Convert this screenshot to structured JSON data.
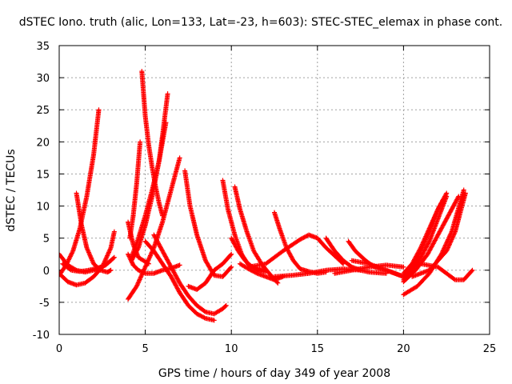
{
  "chart_data": {
    "type": "scatter",
    "title": "dSTEC Iono. truth (alic, Lon=133, Lat=-23, h=603): STEC-STEC_elemax in phase cont.",
    "xlabel": "GPS time / hours of day 349 of year 2008",
    "ylabel": "dSTEC  / TECUs",
    "xlim": [
      0,
      25
    ],
    "ylim": [
      -10,
      35
    ],
    "x_ticks": [
      0,
      5,
      10,
      15,
      20,
      25
    ],
    "y_ticks": [
      -10,
      -5,
      0,
      5,
      10,
      15,
      20,
      25,
      30,
      35
    ],
    "grid": true,
    "legend": "none",
    "marker": "+",
    "color": "#ff0000",
    "series": [
      {
        "x": [
          0.0,
          0.4,
          0.8,
          1.2,
          1.6,
          2.0,
          2.3
        ],
        "y": [
          -0.8,
          0.8,
          3.0,
          6.5,
          11.5,
          18.0,
          25.0
        ]
      },
      {
        "x": [
          0.0,
          0.5,
          1.0,
          1.5,
          2.0,
          2.5,
          3.0
        ],
        "y": [
          2.5,
          0.8,
          0.0,
          -0.3,
          0.0,
          0.5,
          1.5
        ]
      },
      {
        "x": [
          0.0,
          0.5,
          1.0,
          1.5,
          2.0,
          2.5,
          3.0,
          3.2
        ],
        "y": [
          -0.5,
          -1.8,
          -2.3,
          -2.0,
          -1.0,
          0.5,
          3.5,
          6.0
        ]
      },
      {
        "x": [
          0.2,
          0.7,
          1.2,
          1.7,
          2.2,
          2.7,
          3.2
        ],
        "y": [
          1.0,
          0.0,
          -0.2,
          0.0,
          0.3,
          0.8,
          2.0
        ]
      },
      {
        "x": [
          1.0,
          1.3,
          1.6,
          2.0,
          2.4,
          2.8,
          3.0
        ],
        "y": [
          12.0,
          7.0,
          3.5,
          1.0,
          0.0,
          -0.3,
          0.0
        ]
      },
      {
        "x": [
          4.0,
          4.3,
          4.6,
          5.0,
          5.5,
          6.0,
          6.5,
          7.0
        ],
        "y": [
          2.5,
          0.8,
          0.0,
          -0.5,
          -0.5,
          0.0,
          0.3,
          0.8
        ]
      },
      {
        "x": [
          4.0,
          4.3,
          4.6,
          4.9,
          5.2
        ],
        "y": [
          7.5,
          4.0,
          2.0,
          1.5,
          1.0
        ]
      },
      {
        "x": [
          4.0,
          4.5,
          5.0,
          5.5,
          6.0,
          6.5,
          7.0
        ],
        "y": [
          -4.5,
          -2.5,
          0.5,
          3.5,
          7.5,
          12.5,
          17.5
        ]
      },
      {
        "x": [
          4.1,
          4.3,
          4.5,
          4.7
        ],
        "y": [
          5.0,
          8.5,
          13.5,
          20.0
        ]
      },
      {
        "x": [
          4.2,
          4.6,
          5.0,
          5.4,
          5.8,
          6.2
        ],
        "y": [
          1.5,
          3.5,
          7.0,
          11.5,
          17.0,
          23.0
        ]
      },
      {
        "x": [
          4.2,
          4.6,
          5.0,
          5.4,
          5.8,
          6.0,
          6.3
        ],
        "y": [
          2.0,
          5.0,
          8.5,
          12.5,
          17.0,
          21.0,
          27.5
        ]
      },
      {
        "x": [
          4.8,
          5.0,
          5.2,
          5.4,
          5.6,
          5.8,
          6.0
        ],
        "y": [
          31.0,
          24.0,
          19.5,
          16.0,
          13.0,
          10.5,
          8.5
        ]
      },
      {
        "x": [
          5.5,
          6.0,
          6.5,
          7.0,
          7.5,
          8.0,
          8.5,
          9.0,
          9.5,
          9.7
        ],
        "y": [
          5.5,
          3.0,
          0.5,
          -2.0,
          -4.0,
          -5.5,
          -6.5,
          -6.8,
          -6.0,
          -5.5
        ]
      },
      {
        "x": [
          5.0,
          5.5,
          6.0,
          6.5,
          7.0,
          7.5,
          8.0,
          8.5,
          9.0
        ],
        "y": [
          4.5,
          3.0,
          1.0,
          -1.0,
          -3.5,
          -5.5,
          -6.8,
          -7.5,
          -7.8
        ]
      },
      {
        "x": [
          7.3,
          7.6,
          8.0,
          8.5,
          9.0,
          9.5,
          10.0
        ],
        "y": [
          15.5,
          10.0,
          5.5,
          1.5,
          -0.8,
          -1.0,
          0.5
        ]
      },
      {
        "x": [
          7.5,
          8.0,
          8.5,
          9.0,
          9.5,
          10.0
        ],
        "y": [
          -2.5,
          -3.0,
          -2.0,
          0.0,
          1.0,
          2.5
        ]
      },
      {
        "x": [
          9.5,
          9.8,
          10.2,
          10.6,
          11.0,
          11.5,
          12.0
        ],
        "y": [
          14.0,
          9.5,
          5.5,
          2.5,
          0.8,
          0.2,
          0.0
        ]
      },
      {
        "x": [
          10.2,
          10.5,
          10.9,
          11.3,
          11.8,
          12.2,
          12.7
        ],
        "y": [
          13.0,
          9.5,
          6.0,
          3.0,
          0.8,
          -0.5,
          -2.0
        ]
      },
      {
        "x": [
          10.0,
          10.4,
          10.8,
          11.2,
          11.6,
          12.0
        ],
        "y": [
          5.0,
          3.0,
          1.5,
          0.5,
          0.0,
          -0.2
        ]
      },
      {
        "x": [
          10.5,
          11.0,
          11.5,
          12.0,
          12.5,
          13.0
        ],
        "y": [
          1.0,
          0.2,
          -0.5,
          -1.0,
          -1.5,
          -1.0
        ]
      },
      {
        "x": [
          12.5,
          12.8,
          13.2,
          13.6,
          14.0,
          14.5,
          15.0,
          15.5
        ],
        "y": [
          9.0,
          6.5,
          3.5,
          1.5,
          0.2,
          -0.2,
          -0.5,
          -0.3
        ]
      },
      {
        "x": [
          11.0,
          12.0,
          13.0,
          14.0,
          14.5,
          15.0,
          15.5,
          16.5
        ],
        "y": [
          0.5,
          1.0,
          3.0,
          4.8,
          5.5,
          5.0,
          3.5,
          1.0
        ]
      },
      {
        "x": [
          12.5,
          13.5,
          14.5,
          15.5,
          16.5,
          17.5
        ],
        "y": [
          -1.0,
          -0.8,
          -0.5,
          0.0,
          0.2,
          0.0
        ]
      },
      {
        "x": [
          15.5,
          16.0,
          16.5,
          17.0,
          17.5,
          18.0,
          19.0
        ],
        "y": [
          5.0,
          3.0,
          1.5,
          0.5,
          0.0,
          -0.3,
          -0.5
        ]
      },
      {
        "x": [
          16.0,
          17.0,
          18.0,
          19.0,
          20.0
        ],
        "y": [
          -0.5,
          0.0,
          0.5,
          0.8,
          0.5
        ]
      },
      {
        "x": [
          16.8,
          17.2,
          17.8,
          18.3,
          19.0,
          19.5,
          20.0
        ],
        "y": [
          4.5,
          3.0,
          1.5,
          0.5,
          0.0,
          -0.5,
          -1.0
        ]
      },
      {
        "x": [
          17.0,
          18.0,
          19.0,
          20.0
        ],
        "y": [
          1.5,
          1.0,
          0.0,
          -1.0
        ]
      },
      {
        "x": [
          20.0,
          20.5,
          21.0,
          21.5,
          22.0,
          22.3
        ],
        "y": [
          -1.0,
          0.5,
          3.0,
          6.0,
          9.5,
          11.0
        ]
      },
      {
        "x": [
          20.0,
          20.5,
          21.0,
          21.5,
          22.0,
          22.5
        ],
        "y": [
          -1.5,
          0.0,
          2.0,
          4.5,
          8.0,
          11.5
        ]
      },
      {
        "x": [
          20.0,
          20.5,
          21.0,
          21.5,
          22.0,
          22.5
        ],
        "y": [
          -0.5,
          1.0,
          3.5,
          6.5,
          9.5,
          12.0
        ]
      },
      {
        "x": [
          20.0,
          20.7,
          21.4,
          22.0,
          22.6,
          23.2
        ],
        "y": [
          -1.8,
          0.0,
          2.5,
          5.5,
          8.5,
          11.5
        ]
      },
      {
        "x": [
          20.0,
          20.8,
          21.5,
          22.2,
          22.8,
          23.5
        ],
        "y": [
          -3.8,
          -2.5,
          -0.5,
          2.5,
          6.0,
          12.5
        ]
      },
      {
        "x": [
          21.0,
          22.0,
          22.5,
          23.0,
          23.5,
          24.0
        ],
        "y": [
          1.0,
          0.5,
          -0.5,
          -1.5,
          -1.5,
          0.0
        ]
      },
      {
        "x": [
          20.5,
          21.5,
          22.5,
          23.0,
          23.3,
          23.6
        ],
        "y": [
          -1.0,
          0.0,
          3.0,
          6.0,
          9.0,
          12.0
        ]
      }
    ]
  }
}
